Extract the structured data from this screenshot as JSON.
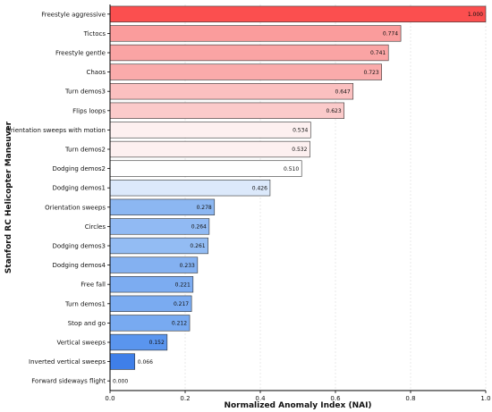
{
  "chart_data": {
    "type": "bar",
    "orientation": "horizontal",
    "title": "",
    "xlabel": "Normalized Anomaly Index (NAI)",
    "ylabel": "Stanford RC Helicopter Maneuver",
    "xlim": [
      0,
      1.0
    ],
    "xticks": [
      "0.0",
      "0.2",
      "0.4",
      "0.6",
      "0.8",
      "1.0"
    ],
    "grid": "vertical-dashed",
    "categories": [
      "Freestyle aggressive",
      "Tictocs",
      "Freestyle gentle",
      "Chaos",
      "Turn demos3",
      "Flips loops",
      "Orientation sweeps with motion",
      "Turn demos2",
      "Dodging demos2",
      "Dodging demos1",
      "Orientation sweeps",
      "Circles",
      "Dodging demos3",
      "Dodging demos4",
      "Free fall",
      "Turn demos1",
      "Stop and go",
      "Vertical sweeps",
      "Inverted vertical sweeps",
      "Forward sideways flight"
    ],
    "values": [
      1.0,
      0.774,
      0.741,
      0.723,
      0.647,
      0.623,
      0.534,
      0.532,
      0.51,
      0.426,
      0.278,
      0.264,
      0.261,
      0.233,
      0.221,
      0.217,
      0.212,
      0.152,
      0.066,
      0.0
    ],
    "value_labels": [
      "1.000",
      "0.774",
      "0.741",
      "0.723",
      "0.647",
      "0.623",
      "0.534",
      "0.532",
      "0.510",
      "0.426",
      "0.278",
      "0.264",
      "0.261",
      "0.233",
      "0.221",
      "0.217",
      "0.212",
      "0.152",
      "0.066",
      "0.000"
    ],
    "colors": [
      "#fb4f4f",
      "#fa9c9c",
      "#faa4a4",
      "#faabab",
      "#fbc0c0",
      "#fbcaca",
      "#fdf0f0",
      "#fdf0f0",
      "#ffffff",
      "#dce9fb",
      "#8cb7f2",
      "#91baf3",
      "#93bcf3",
      "#84b1f1",
      "#7cacf1",
      "#7aabf1",
      "#78aaf1",
      "#5a95ee",
      "#3f7fe9",
      "#1f5fdf"
    ]
  }
}
